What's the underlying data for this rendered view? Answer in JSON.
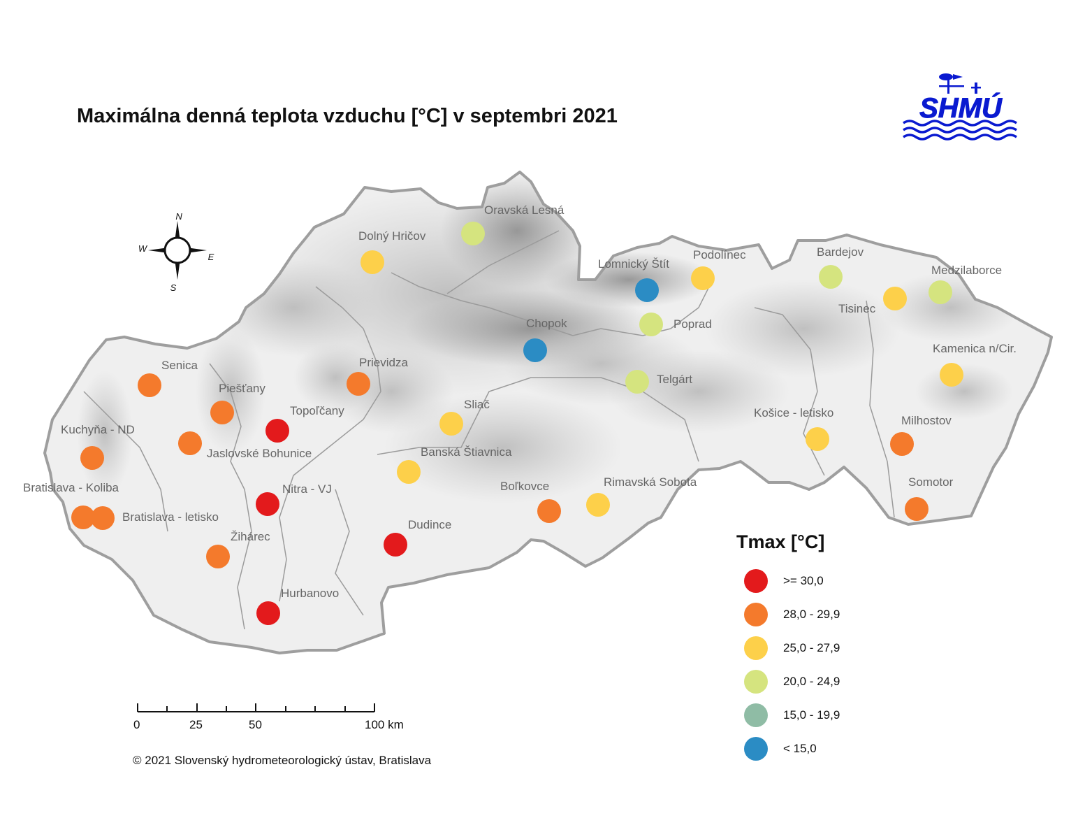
{
  "title": "Maximálna denná teplota vzduchu [°C] v septembri 2021",
  "logo": {
    "text": "SHMÚ",
    "color": "#0a1ad0",
    "icon": "weather-vane-waves-logo"
  },
  "legend": {
    "title": "Tmax [°C]",
    "classes": [
      {
        "label": ">= 30,0",
        "color": "#e31a1c"
      },
      {
        "label": "28,0 - 29,9",
        "color": "#f47a2c"
      },
      {
        "label": "25,0 - 27,9",
        "color": "#fdd04a"
      },
      {
        "label": "20,0 - 24,9",
        "color": "#d5e47f"
      },
      {
        "label": "15,0 - 19,9",
        "color": "#8fbca5"
      },
      {
        "label": "< 15,0",
        "color": "#2b8cc4"
      }
    ]
  },
  "compass": {
    "n": "N",
    "s": "S",
    "e": "E",
    "w": "W"
  },
  "scale_bar": {
    "labels": [
      "0",
      "25",
      "50",
      "100 km"
    ]
  },
  "copyright": "© 2021 Slovenský hydrometeorologický ústav, Bratislava",
  "stations": [
    {
      "name": "Oravská Lesná",
      "class": 3
    },
    {
      "name": "Dolný Hričov",
      "class": 2
    },
    {
      "name": "Lomnický Štít",
      "class": 5
    },
    {
      "name": "Podolínec",
      "class": 2
    },
    {
      "name": "Bardejov",
      "class": 3
    },
    {
      "name": "Medzilaborce",
      "class": 3
    },
    {
      "name": "Tisinec",
      "class": 2
    },
    {
      "name": "Poprad",
      "class": 3
    },
    {
      "name": "Chopok",
      "class": 5
    },
    {
      "name": "Kamenica n/Cir.",
      "class": 2
    },
    {
      "name": "Senica",
      "class": 1
    },
    {
      "name": "Prievidza",
      "class": 1
    },
    {
      "name": "Telgárt",
      "class": 3
    },
    {
      "name": "Piešťany",
      "class": 1
    },
    {
      "name": "Topoľčany",
      "class": 0
    },
    {
      "name": "Sliač",
      "class": 2
    },
    {
      "name": "Košice - letisko",
      "class": 2
    },
    {
      "name": "Kuchyňa - ND",
      "class": 1
    },
    {
      "name": "Jaslovské Bohunice",
      "class": 1
    },
    {
      "name": "Milhostov",
      "class": 1
    },
    {
      "name": "Banská Štiavnica",
      "class": 2
    },
    {
      "name": "Bratislava - Koliba",
      "class": 1
    },
    {
      "name": "Bratislava - letisko",
      "class": 1
    },
    {
      "name": "Nitra - VJ",
      "class": 0
    },
    {
      "name": "Boľkovce",
      "class": 1
    },
    {
      "name": "Rimavská Sobota",
      "class": 2
    },
    {
      "name": "Somotor",
      "class": 1
    },
    {
      "name": "Žihárec",
      "class": 1
    },
    {
      "name": "Dudince",
      "class": 0
    },
    {
      "name": "Hurbanovo",
      "class": 0
    }
  ]
}
